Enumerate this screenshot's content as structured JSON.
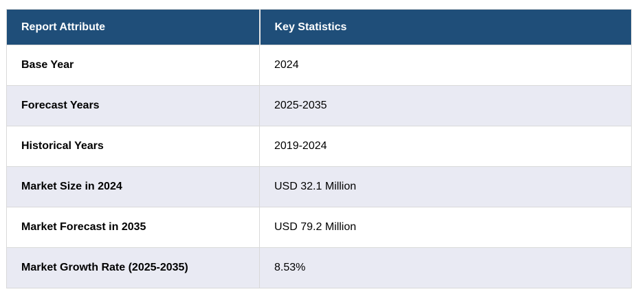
{
  "colors": {
    "header_bg": "#1F4E79",
    "header_text": "#FFFFFF",
    "row_bg": "#FFFFFF",
    "row_alt_bg": "#E9EAF3",
    "border": "#D9D9D9",
    "text": "#000000"
  },
  "table": {
    "headers": [
      "Report Attribute",
      "Key Statistics"
    ],
    "rows": [
      {
        "attribute": "Base Year",
        "value": "2024"
      },
      {
        "attribute": "Forecast Years",
        "value": "2025-2035"
      },
      {
        "attribute": "Historical Years",
        "value": "2019-2024"
      },
      {
        "attribute": "Market Size in 2024",
        "value": "USD 32.1 Million"
      },
      {
        "attribute": "Market Forecast in 2035",
        "value": "USD 79.2 Million"
      },
      {
        "attribute": "Market Growth Rate (2025-2035)",
        "value": "8.53%"
      }
    ]
  },
  "chart_data": {
    "type": "table",
    "columns": [
      "Report Attribute",
      "Key Statistics"
    ],
    "rows": [
      [
        "Base Year",
        "2024"
      ],
      [
        "Forecast Years",
        "2025-2035"
      ],
      [
        "Historical Years",
        "2019-2024"
      ],
      [
        "Market Size in 2024",
        "USD 32.1 Million"
      ],
      [
        "Market Forecast in 2035",
        "USD 79.2 Million"
      ],
      [
        "Market Growth Rate (2025-2035)",
        "8.53%"
      ]
    ]
  }
}
